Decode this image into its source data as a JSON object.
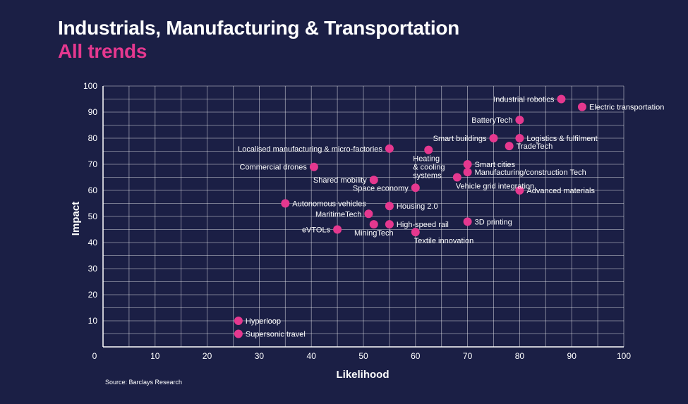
{
  "header": {
    "title": "Industrials, Manufacturing & Transportation",
    "subtitle": "All trends"
  },
  "footer": {
    "source": "Source: Barclays Research"
  },
  "colors": {
    "background": "#1b1f45",
    "point": "#e5388f",
    "subtitle": "#e5388f",
    "text": "#ffffff"
  },
  "chart_data": {
    "type": "scatter",
    "title": "Industrials, Manufacturing & Transportation",
    "subtitle": "All trends",
    "xlabel": "Likelihood",
    "ylabel": "Impact",
    "xlim": [
      0,
      100
    ],
    "ylim": [
      0,
      100
    ],
    "xticks": [
      0,
      10,
      20,
      30,
      40,
      50,
      60,
      70,
      80,
      90,
      100
    ],
    "yticks": [
      0,
      10,
      20,
      30,
      40,
      50,
      60,
      70,
      80,
      90,
      100
    ],
    "grid": true,
    "points": [
      {
        "label": "Industrial robotics",
        "x": 88,
        "y": 95,
        "pos": "left"
      },
      {
        "label": "Electric transportation",
        "x": 92,
        "y": 92,
        "pos": "right"
      },
      {
        "label": "BatteryTech",
        "x": 80,
        "y": 87,
        "pos": "left"
      },
      {
        "label": "Smart buildings",
        "x": 75,
        "y": 80,
        "pos": "left"
      },
      {
        "label": "Logistics & fulfilment",
        "x": 80,
        "y": 80,
        "pos": "right"
      },
      {
        "label": "TradeTech",
        "x": 78,
        "y": 77,
        "pos": "right"
      },
      {
        "label": "Localised manufacturing & micro-factories",
        "x": 55,
        "y": 76,
        "pos": "left"
      },
      {
        "label": "Heating\n& cooling\nsystems",
        "x": 62.5,
        "y": 75.5,
        "pos": "below-left"
      },
      {
        "label": "Smart cities",
        "x": 70,
        "y": 70,
        "pos": "right"
      },
      {
        "label": "Commercial drones",
        "x": 40.5,
        "y": 69,
        "pos": "left"
      },
      {
        "label": "Manufacturing/construction Tech",
        "x": 70,
        "y": 67,
        "pos": "right"
      },
      {
        "label": "Vehicle grid integration",
        "x": 68,
        "y": 65,
        "pos": "below-right"
      },
      {
        "label": "Shared mobility",
        "x": 52,
        "y": 64,
        "pos": "left"
      },
      {
        "label": "Space economy",
        "x": 60,
        "y": 61,
        "pos": "left"
      },
      {
        "label": "Advanced materials",
        "x": 80,
        "y": 60,
        "pos": "right"
      },
      {
        "label": "Autonomous vehicles",
        "x": 35,
        "y": 55,
        "pos": "right"
      },
      {
        "label": "Housing 2.0",
        "x": 55,
        "y": 54,
        "pos": "right"
      },
      {
        "label": "MaritimeTech",
        "x": 51,
        "y": 51,
        "pos": "left"
      },
      {
        "label": "3D printing",
        "x": 70,
        "y": 48,
        "pos": "right"
      },
      {
        "label": "High-speed rail",
        "x": 55,
        "y": 47,
        "pos": "right"
      },
      {
        "label": "MiningTech",
        "x": 52,
        "y": 47,
        "pos": "below"
      },
      {
        "label": "eVTOLs",
        "x": 45,
        "y": 45,
        "pos": "left"
      },
      {
        "label": "Textile innovation",
        "x": 60,
        "y": 44,
        "pos": "below-right"
      },
      {
        "label": "Hyperloop",
        "x": 26,
        "y": 10,
        "pos": "right"
      },
      {
        "label": "Supersonic travel",
        "x": 26,
        "y": 5,
        "pos": "right"
      }
    ]
  }
}
